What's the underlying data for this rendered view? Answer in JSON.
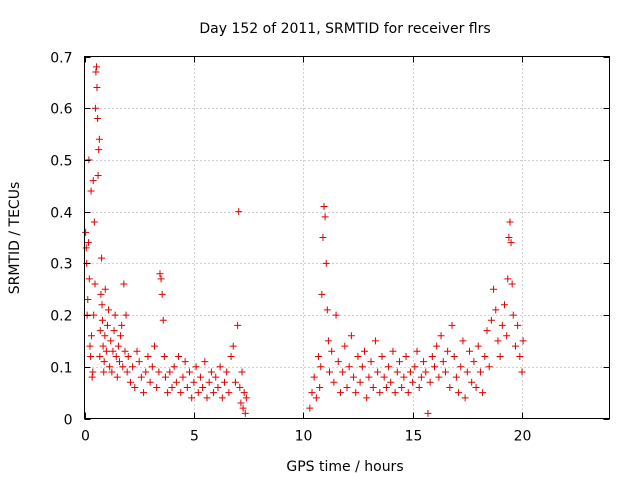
{
  "chart_data": {
    "type": "scatter",
    "title": "Day 152 of 2011, SRMTID for receiver flrs",
    "xlabel": "GPS time / hours",
    "ylabel": "SRMTID / TECUs",
    "xlim": [
      0,
      24
    ],
    "ylim": [
      0,
      0.7
    ],
    "xticks": [
      0,
      5,
      10,
      15,
      20
    ],
    "yticks": [
      0,
      0.1,
      0.2,
      0.3,
      0.4,
      0.5,
      0.6,
      0.7
    ],
    "xtick_labels": [
      "0",
      "5",
      "10",
      "15",
      "20"
    ],
    "ytick_labels": [
      "0",
      "0.1",
      "0.2",
      "0.3",
      "0.4",
      "0.5",
      "0.6",
      "0.7"
    ],
    "grid": true,
    "marker": "+",
    "color": "#e00000",
    "series": [
      {
        "name": "SRMTID flrs",
        "points": [
          [
            0.05,
            0.36
          ],
          [
            0.08,
            0.33
          ],
          [
            0.1,
            0.3
          ],
          [
            0.12,
            0.2
          ],
          [
            0.15,
            0.23
          ],
          [
            0.18,
            0.34
          ],
          [
            0.2,
            0.5
          ],
          [
            0.22,
            0.27
          ],
          [
            0.25,
            0.14
          ],
          [
            0.28,
            0.12
          ],
          [
            0.3,
            0.44
          ],
          [
            0.32,
            0.16
          ],
          [
            0.35,
            0.08
          ],
          [
            0.38,
            0.09
          ],
          [
            0.4,
            0.46
          ],
          [
            0.42,
            0.2
          ],
          [
            0.45,
            0.38
          ],
          [
            0.48,
            0.26
          ],
          [
            0.5,
            0.6
          ],
          [
            0.52,
            0.67
          ],
          [
            0.55,
            0.68
          ],
          [
            0.57,
            0.64
          ],
          [
            0.6,
            0.58
          ],
          [
            0.62,
            0.47
          ],
          [
            0.65,
            0.52
          ],
          [
            0.68,
            0.54
          ],
          [
            0.7,
            0.12
          ],
          [
            0.72,
            0.17
          ],
          [
            0.75,
            0.24
          ],
          [
            0.78,
            0.31
          ],
          [
            0.8,
            0.22
          ],
          [
            0.82,
            0.19
          ],
          [
            0.85,
            0.14
          ],
          [
            0.88,
            0.09
          ],
          [
            0.9,
            0.11
          ],
          [
            0.93,
            0.16
          ],
          [
            0.95,
            0.25
          ],
          [
            1.0,
            0.13
          ],
          [
            1.05,
            0.18
          ],
          [
            1.1,
            0.21
          ],
          [
            1.15,
            0.1
          ],
          [
            1.2,
            0.15
          ],
          [
            1.25,
            0.09
          ],
          [
            1.3,
            0.13
          ],
          [
            1.35,
            0.17
          ],
          [
            1.4,
            0.2
          ],
          [
            1.45,
            0.12
          ],
          [
            1.5,
            0.08
          ],
          [
            1.55,
            0.14
          ],
          [
            1.6,
            0.11
          ],
          [
            1.65,
            0.16
          ],
          [
            1.7,
            0.18
          ],
          [
            1.75,
            0.1
          ],
          [
            1.8,
            0.26
          ],
          [
            1.85,
            0.13
          ],
          [
            1.9,
            0.2
          ],
          [
            1.95,
            0.09
          ],
          [
            2.0,
            0.12
          ],
          [
            2.1,
            0.07
          ],
          [
            2.2,
            0.1
          ],
          [
            2.3,
            0.06
          ],
          [
            2.4,
            0.13
          ],
          [
            2.5,
            0.11
          ],
          [
            2.6,
            0.08
          ],
          [
            2.7,
            0.05
          ],
          [
            2.8,
            0.09
          ],
          [
            2.9,
            0.12
          ],
          [
            3.0,
            0.07
          ],
          [
            3.1,
            0.1
          ],
          [
            3.2,
            0.14
          ],
          [
            3.3,
            0.06
          ],
          [
            3.4,
            0.09
          ],
          [
            3.45,
            0.28
          ],
          [
            3.5,
            0.27
          ],
          [
            3.55,
            0.24
          ],
          [
            3.6,
            0.19
          ],
          [
            3.65,
            0.12
          ],
          [
            3.7,
            0.08
          ],
          [
            3.8,
            0.05
          ],
          [
            3.9,
            0.09
          ],
          [
            4.0,
            0.06
          ],
          [
            4.1,
            0.1
          ],
          [
            4.2,
            0.07
          ],
          [
            4.3,
            0.12
          ],
          [
            4.4,
            0.05
          ],
          [
            4.5,
            0.08
          ],
          [
            4.6,
            0.11
          ],
          [
            4.7,
            0.06
          ],
          [
            4.8,
            0.09
          ],
          [
            4.9,
            0.04
          ],
          [
            5.0,
            0.07
          ],
          [
            5.1,
            0.1
          ],
          [
            5.2,
            0.05
          ],
          [
            5.3,
            0.08
          ],
          [
            5.4,
            0.06
          ],
          [
            5.5,
            0.11
          ],
          [
            5.6,
            0.04
          ],
          [
            5.7,
            0.07
          ],
          [
            5.8,
            0.09
          ],
          [
            5.9,
            0.05
          ],
          [
            6.0,
            0.08
          ],
          [
            6.1,
            0.06
          ],
          [
            6.2,
            0.1
          ],
          [
            6.3,
            0.04
          ],
          [
            6.4,
            0.07
          ],
          [
            6.5,
            0.09
          ],
          [
            6.6,
            0.05
          ],
          [
            6.7,
            0.12
          ],
          [
            6.8,
            0.14
          ],
          [
            6.9,
            0.07
          ],
          [
            7.0,
            0.18
          ],
          [
            7.05,
            0.4
          ],
          [
            7.1,
            0.06
          ],
          [
            7.15,
            0.03
          ],
          [
            7.2,
            0.09
          ],
          [
            7.25,
            0.02
          ],
          [
            7.3,
            0.05
          ],
          [
            7.35,
            0.01
          ],
          [
            7.4,
            0.04
          ],
          [
            10.3,
            0.02
          ],
          [
            10.4,
            0.05
          ],
          [
            10.5,
            0.08
          ],
          [
            10.6,
            0.04
          ],
          [
            10.7,
            0.12
          ],
          [
            10.75,
            0.06
          ],
          [
            10.8,
            0.1
          ],
          [
            10.85,
            0.24
          ],
          [
            10.9,
            0.35
          ],
          [
            10.95,
            0.41
          ],
          [
            11.0,
            0.39
          ],
          [
            11.05,
            0.3
          ],
          [
            11.1,
            0.21
          ],
          [
            11.15,
            0.15
          ],
          [
            11.2,
            0.09
          ],
          [
            11.3,
            0.13
          ],
          [
            11.4,
            0.07
          ],
          [
            11.5,
            0.2
          ],
          [
            11.6,
            0.11
          ],
          [
            11.7,
            0.05
          ],
          [
            11.8,
            0.09
          ],
          [
            11.9,
            0.14
          ],
          [
            12.0,
            0.06
          ],
          [
            12.1,
            0.1
          ],
          [
            12.2,
            0.16
          ],
          [
            12.3,
            0.08
          ],
          [
            12.4,
            0.05
          ],
          [
            12.5,
            0.12
          ],
          [
            12.6,
            0.07
          ],
          [
            12.7,
            0.1
          ],
          [
            12.8,
            0.13
          ],
          [
            12.9,
            0.04
          ],
          [
            13.0,
            0.08
          ],
          [
            13.1,
            0.11
          ],
          [
            13.2,
            0.06
          ],
          [
            13.3,
            0.15
          ],
          [
            13.4,
            0.09
          ],
          [
            13.5,
            0.05
          ],
          [
            13.6,
            0.12
          ],
          [
            13.7,
            0.08
          ],
          [
            13.8,
            0.06
          ],
          [
            13.9,
            0.1
          ],
          [
            14.0,
            0.07
          ],
          [
            14.1,
            0.13
          ],
          [
            14.2,
            0.05
          ],
          [
            14.3,
            0.09
          ],
          [
            14.4,
            0.11
          ],
          [
            14.5,
            0.06
          ],
          [
            14.6,
            0.08
          ],
          [
            14.7,
            0.12
          ],
          [
            14.8,
            0.05
          ],
          [
            14.9,
            0.09
          ],
          [
            15.0,
            0.07
          ],
          [
            15.1,
            0.1
          ],
          [
            15.2,
            0.13
          ],
          [
            15.3,
            0.06
          ],
          [
            15.4,
            0.08
          ],
          [
            15.5,
            0.11
          ],
          [
            15.6,
            0.09
          ],
          [
            15.7,
            0.01
          ],
          [
            15.8,
            0.07
          ],
          [
            15.9,
            0.12
          ],
          [
            16.0,
            0.1
          ],
          [
            16.1,
            0.14
          ],
          [
            16.2,
            0.08
          ],
          [
            16.3,
            0.16
          ],
          [
            16.4,
            0.11
          ],
          [
            16.5,
            0.09
          ],
          [
            16.6,
            0.13
          ],
          [
            16.7,
            0.06
          ],
          [
            16.8,
            0.18
          ],
          [
            16.9,
            0.12
          ],
          [
            17.0,
            0.08
          ],
          [
            17.1,
            0.05
          ],
          [
            17.2,
            0.1
          ],
          [
            17.3,
            0.15
          ],
          [
            17.4,
            0.04
          ],
          [
            17.5,
            0.09
          ],
          [
            17.6,
            0.13
          ],
          [
            17.7,
            0.07
          ],
          [
            17.8,
            0.11
          ],
          [
            17.9,
            0.06
          ],
          [
            18.0,
            0.14
          ],
          [
            18.1,
            0.09
          ],
          [
            18.2,
            0.05
          ],
          [
            18.3,
            0.12
          ],
          [
            18.4,
            0.17
          ],
          [
            18.5,
            0.1
          ],
          [
            18.6,
            0.19
          ],
          [
            18.7,
            0.25
          ],
          [
            18.8,
            0.21
          ],
          [
            18.9,
            0.15
          ],
          [
            19.0,
            0.12
          ],
          [
            19.1,
            0.18
          ],
          [
            19.2,
            0.22
          ],
          [
            19.3,
            0.16
          ],
          [
            19.35,
            0.27
          ],
          [
            19.4,
            0.35
          ],
          [
            19.45,
            0.38
          ],
          [
            19.5,
            0.34
          ],
          [
            19.55,
            0.26
          ],
          [
            19.6,
            0.2
          ],
          [
            19.7,
            0.14
          ],
          [
            19.8,
            0.18
          ],
          [
            19.9,
            0.12
          ],
          [
            20.0,
            0.09
          ],
          [
            20.05,
            0.15
          ]
        ]
      }
    ]
  }
}
